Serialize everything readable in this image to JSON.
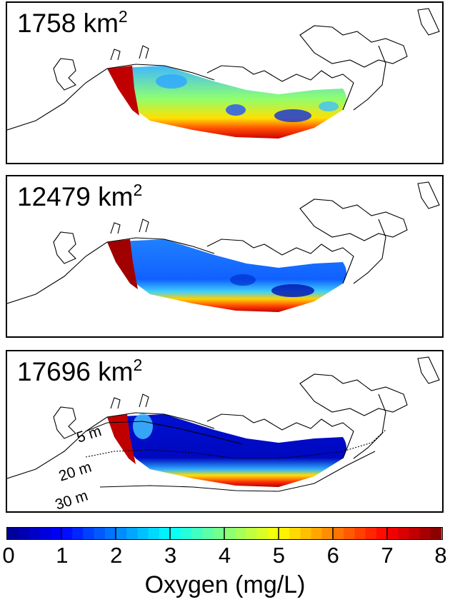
{
  "panels": [
    {
      "area_value": "1758",
      "unit": "km",
      "unit_exp": "2",
      "overall": "mid"
    },
    {
      "area_value": "12479",
      "unit": "km",
      "unit_exp": "2",
      "overall": "low"
    },
    {
      "area_value": "17696",
      "unit": "km",
      "unit_exp": "2",
      "overall": "very-low"
    }
  ],
  "depth_contours": [
    "5 m",
    "20 m",
    "30 m"
  ],
  "colorbar": {
    "title": "Oxygen (mg/L)",
    "min": 0,
    "max": 8,
    "ticks": [
      "0",
      "1",
      "2",
      "3",
      "4",
      "5",
      "6",
      "7",
      "8"
    ],
    "colormap": "jet",
    "colors": [
      "#00008f",
      "#0000ff",
      "#0080ff",
      "#00ffff",
      "#80ff80",
      "#ffff00",
      "#ff8000",
      "#ff0000",
      "#800000"
    ]
  }
}
